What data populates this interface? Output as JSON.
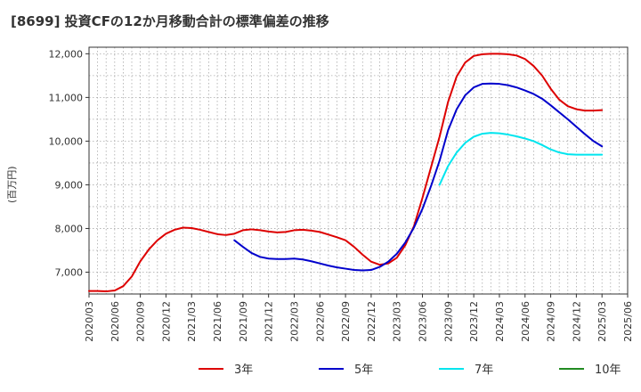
{
  "chart_data": {
    "type": "line",
    "title": "[8699]  投資CFの12か月移動合計の標準偏差の推移",
    "ylabel": "(百万円)",
    "xlabel": "",
    "ylim": [
      6500,
      12150
    ],
    "yticks": [
      7000,
      8000,
      9000,
      10000,
      11000,
      12000
    ],
    "ytick_labels": [
      "7,000",
      "8,000",
      "9,000",
      "10,000",
      "11,000",
      "12,000"
    ],
    "xticks": [
      "2020/03",
      "2020/06",
      "2020/09",
      "2020/12",
      "2021/03",
      "2021/06",
      "2021/09",
      "2021/12",
      "2022/03",
      "2022/06",
      "2022/09",
      "2022/12",
      "2023/03",
      "2023/06",
      "2023/09",
      "2023/12",
      "2024/03",
      "2024/06",
      "2024/09",
      "2024/12",
      "2025/03",
      "2025/06"
    ],
    "grid": true,
    "legend_position": "bottom",
    "series": [
      {
        "name": "3年",
        "color": "#dd0000",
        "values": [
          [
            "2020/03",
            6570
          ],
          [
            "2020/04",
            6570
          ],
          [
            "2020/05",
            6560
          ],
          [
            "2020/06",
            6580
          ],
          [
            "2020/07",
            6680
          ],
          [
            "2020/08",
            6900
          ],
          [
            "2020/09",
            7250
          ],
          [
            "2020/10",
            7520
          ],
          [
            "2020/11",
            7730
          ],
          [
            "2020/12",
            7880
          ],
          [
            "2021/01",
            7970
          ],
          [
            "2021/02",
            8020
          ],
          [
            "2021/03",
            8010
          ],
          [
            "2021/04",
            7970
          ],
          [
            "2021/05",
            7920
          ],
          [
            "2021/06",
            7870
          ],
          [
            "2021/07",
            7850
          ],
          [
            "2021/08",
            7880
          ],
          [
            "2021/09",
            7960
          ],
          [
            "2021/10",
            7980
          ],
          [
            "2021/11",
            7960
          ],
          [
            "2021/12",
            7930
          ],
          [
            "2022/01",
            7910
          ],
          [
            "2022/02",
            7920
          ],
          [
            "2022/03",
            7960
          ],
          [
            "2022/04",
            7970
          ],
          [
            "2022/05",
            7950
          ],
          [
            "2022/06",
            7920
          ],
          [
            "2022/07",
            7860
          ],
          [
            "2022/08",
            7800
          ],
          [
            "2022/09",
            7730
          ],
          [
            "2022/10",
            7580
          ],
          [
            "2022/11",
            7400
          ],
          [
            "2022/12",
            7240
          ],
          [
            "2023/01",
            7170
          ],
          [
            "2023/02",
            7200
          ],
          [
            "2023/03",
            7330
          ],
          [
            "2023/04",
            7620
          ],
          [
            "2023/05",
            8050
          ],
          [
            "2023/06",
            8700
          ],
          [
            "2023/07",
            9400
          ],
          [
            "2023/08",
            10100
          ],
          [
            "2023/09",
            10900
          ],
          [
            "2023/10",
            11480
          ],
          [
            "2023/11",
            11800
          ],
          [
            "2023/12",
            11950
          ],
          [
            "2024/01",
            11990
          ],
          [
            "2024/02",
            12000
          ],
          [
            "2024/03",
            12000
          ],
          [
            "2024/04",
            11990
          ],
          [
            "2024/05",
            11960
          ],
          [
            "2024/06",
            11880
          ],
          [
            "2024/07",
            11720
          ],
          [
            "2024/08",
            11500
          ],
          [
            "2024/09",
            11200
          ],
          [
            "2024/10",
            10950
          ],
          [
            "2024/11",
            10800
          ],
          [
            "2024/12",
            10730
          ],
          [
            "2025/01",
            10700
          ],
          [
            "2025/02",
            10700
          ],
          [
            "2025/03",
            10710
          ]
        ]
      },
      {
        "name": "5年",
        "color": "#0000cc",
        "values": [
          [
            "2021/08",
            7730
          ],
          [
            "2021/09",
            7580
          ],
          [
            "2021/10",
            7440
          ],
          [
            "2021/11",
            7350
          ],
          [
            "2021/12",
            7310
          ],
          [
            "2022/01",
            7300
          ],
          [
            "2022/02",
            7300
          ],
          [
            "2022/03",
            7310
          ],
          [
            "2022/04",
            7290
          ],
          [
            "2022/05",
            7250
          ],
          [
            "2022/06",
            7200
          ],
          [
            "2022/07",
            7150
          ],
          [
            "2022/08",
            7110
          ],
          [
            "2022/09",
            7080
          ],
          [
            "2022/10",
            7050
          ],
          [
            "2022/11",
            7040
          ],
          [
            "2022/12",
            7050
          ],
          [
            "2023/01",
            7120
          ],
          [
            "2023/02",
            7240
          ],
          [
            "2023/03",
            7420
          ],
          [
            "2023/04",
            7680
          ],
          [
            "2023/05",
            8020
          ],
          [
            "2023/06",
            8450
          ],
          [
            "2023/07",
            8970
          ],
          [
            "2023/08",
            9550
          ],
          [
            "2023/09",
            10250
          ],
          [
            "2023/10",
            10730
          ],
          [
            "2023/11",
            11050
          ],
          [
            "2023/12",
            11230
          ],
          [
            "2024/01",
            11310
          ],
          [
            "2024/02",
            11320
          ],
          [
            "2024/03",
            11310
          ],
          [
            "2024/04",
            11280
          ],
          [
            "2024/05",
            11230
          ],
          [
            "2024/06",
            11160
          ],
          [
            "2024/07",
            11080
          ],
          [
            "2024/08",
            10970
          ],
          [
            "2024/09",
            10820
          ],
          [
            "2024/10",
            10660
          ],
          [
            "2024/11",
            10500
          ],
          [
            "2024/12",
            10330
          ],
          [
            "2025/01",
            10160
          ],
          [
            "2025/02",
            10000
          ],
          [
            "2025/03",
            9880
          ]
        ]
      },
      {
        "name": "7年",
        "color": "#00e5ee",
        "values": [
          [
            "2023/08",
            9000
          ],
          [
            "2023/09",
            9430
          ],
          [
            "2023/10",
            9740
          ],
          [
            "2023/11",
            9960
          ],
          [
            "2023/12",
            10100
          ],
          [
            "2024/01",
            10170
          ],
          [
            "2024/02",
            10190
          ],
          [
            "2024/03",
            10180
          ],
          [
            "2024/04",
            10150
          ],
          [
            "2024/05",
            10110
          ],
          [
            "2024/06",
            10060
          ],
          [
            "2024/07",
            10000
          ],
          [
            "2024/08",
            9910
          ],
          [
            "2024/09",
            9810
          ],
          [
            "2024/10",
            9740
          ],
          [
            "2024/11",
            9700
          ],
          [
            "2024/12",
            9690
          ],
          [
            "2025/01",
            9690
          ],
          [
            "2025/02",
            9690
          ],
          [
            "2025/03",
            9690
          ]
        ]
      },
      {
        "name": "10年",
        "color": "#228b22",
        "values": []
      }
    ]
  }
}
